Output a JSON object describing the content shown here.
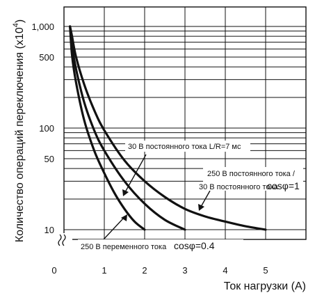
{
  "chart_data": {
    "type": "line",
    "ylabel": "Количество операций переключения (x10",
    "ylabel_exp": "4",
    "ylabel_close": ")",
    "xlabel": "Ток нагрузки (А)",
    "x_origin_label": "0",
    "xlim": [
      0,
      6
    ],
    "ylim": [
      10,
      1000
    ],
    "y_scale": "log",
    "y_axis_break": true,
    "grid": true,
    "x_ticks": [
      {
        "value": 1,
        "label": "1"
      },
      {
        "value": 2,
        "label": "2"
      },
      {
        "value": 3,
        "label": "3"
      },
      {
        "value": 4,
        "label": "4"
      },
      {
        "value": 5,
        "label": "5"
      }
    ],
    "y_ticks": [
      {
        "value": 1000,
        "label": "1,000"
      },
      {
        "value": 500,
        "label": "500"
      },
      {
        "value": 100,
        "label": "100"
      },
      {
        "value": 50,
        "label": "50"
      },
      {
        "value": 10,
        "label": "10"
      }
    ],
    "series": [
      {
        "x": [
          0.15,
          0.2,
          0.3,
          0.5,
          0.75,
          1.0,
          1.25,
          1.5,
          1.75,
          2.0
        ],
        "y": [
          1000,
          520,
          280,
          120,
          60,
          36,
          23,
          16,
          12,
          10
        ]
      },
      {
        "x": [
          0.15,
          0.2,
          0.3,
          0.5,
          0.75,
          1.0,
          1.5,
          2.0,
          2.5,
          3.0
        ],
        "y": [
          1000,
          640,
          380,
          180,
          95,
          60,
          30,
          18,
          12.5,
          10
        ]
      },
      {
        "x": [
          0.15,
          0.2,
          0.3,
          0.5,
          0.75,
          1.0,
          1.5,
          2.0,
          2.5,
          3.0,
          3.5,
          4.0,
          4.5,
          5.0
        ],
        "y": [
          1000,
          800,
          500,
          270,
          150,
          95,
          48,
          30,
          21,
          16,
          13.5,
          12,
          10.8,
          10
        ]
      }
    ],
    "annotations": [
      {
        "key": "a1",
        "text": "30 В постоянного тока L/R=7 мс"
      },
      {
        "key": "a2",
        "text": "250 В  постоянного  тока /"
      },
      {
        "key": "a3",
        "text": "30 В постоянного тока"
      },
      {
        "key": "a4",
        "text": "cosφ=1"
      },
      {
        "key": "a5",
        "text": "250 В переменного тока"
      },
      {
        "key": "a6",
        "text": "cosφ=0.4"
      }
    ]
  }
}
